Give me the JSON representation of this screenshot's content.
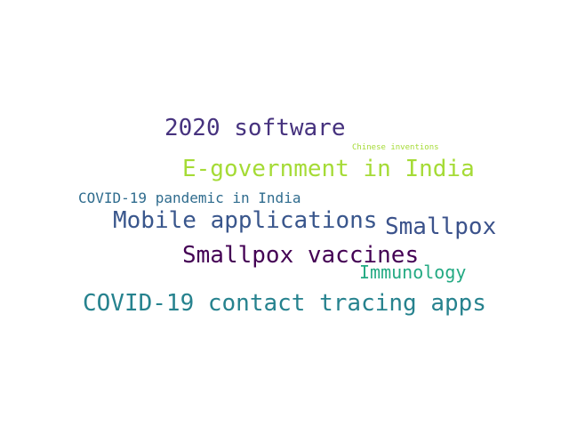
{
  "words": [
    {
      "text": "2020 software",
      "color": "#46327e"
    },
    {
      "text": "Chinese inventions",
      "color": "#a5db36"
    },
    {
      "text": "E-government in India",
      "color": "#a5db36"
    },
    {
      "text": "COVID-19 pandemic in India",
      "color": "#2f6c8e"
    },
    {
      "text": "Mobile applications",
      "color": "#39568c"
    },
    {
      "text": "Smallpox",
      "color": "#3b528b"
    },
    {
      "text": "Smallpox vaccines",
      "color": "#440154"
    },
    {
      "text": "Immunology",
      "color": "#24aa83"
    },
    {
      "text": "COVID-19 contact tracing apps",
      "color": "#26828e"
    }
  ]
}
